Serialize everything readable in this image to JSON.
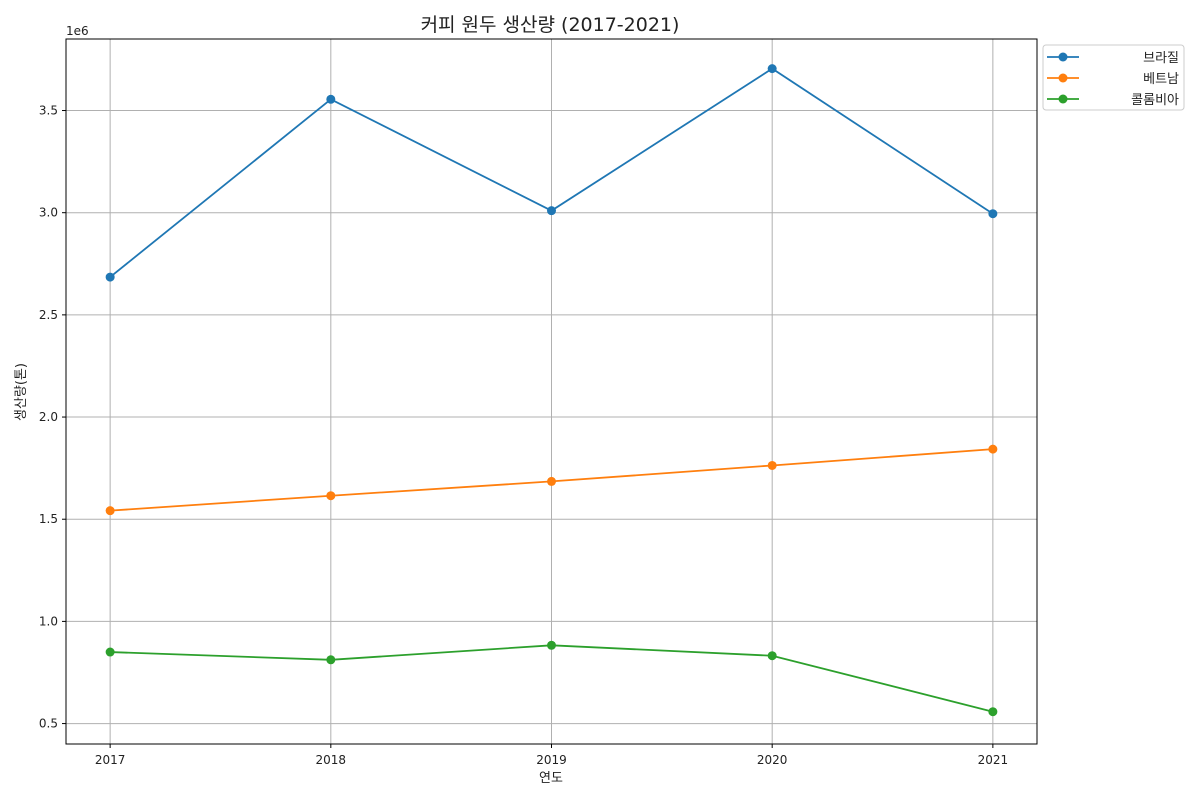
{
  "chart_data": {
    "type": "line",
    "title": "커피 원두 생산량 (2017-2021)",
    "xlabel": "연도",
    "ylabel": "생산량(톤)",
    "y_offset_text": "1e6",
    "x": [
      2017,
      2018,
      2019,
      2020,
      2021
    ],
    "x_tick_labels": [
      "2017",
      "2018",
      "2019",
      "2020",
      "2021"
    ],
    "xlim": [
      2016.8,
      2021.2
    ],
    "ylim": [
      400000,
      3850000
    ],
    "y_ticks": [
      500000,
      1000000,
      1500000,
      2000000,
      2500000,
      3000000,
      3500000
    ],
    "y_tick_labels": [
      "0.5",
      "1.0",
      "1.5",
      "2.0",
      "2.5",
      "3.0",
      "3.5"
    ],
    "grid": true,
    "legend_position": "outside-top-right",
    "series": [
      {
        "name": "브라질",
        "color": "#1f77b4",
        "marker": "circle",
        "values": [
          2685000,
          3555000,
          3010000,
          3705000,
          2995000
        ]
      },
      {
        "name": "베트남",
        "color": "#ff7f0e",
        "marker": "circle",
        "values": [
          1542000,
          1615000,
          1685000,
          1763000,
          1843000
        ]
      },
      {
        "name": "콜롬비아",
        "color": "#2ca02c",
        "marker": "circle",
        "values": [
          850000,
          812000,
          883000,
          832000,
          558000
        ]
      }
    ]
  }
}
